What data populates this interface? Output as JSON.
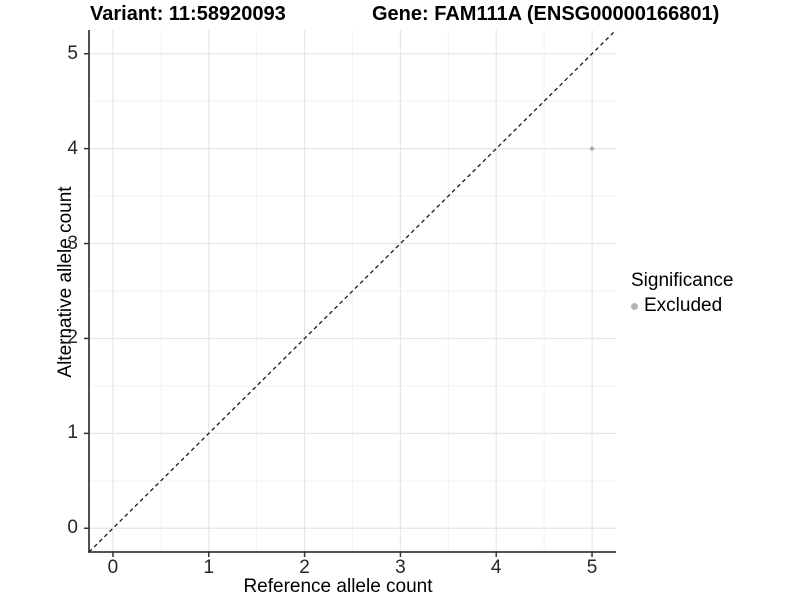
{
  "chart_data": {
    "type": "scatter",
    "titles": {
      "left": "Variant: 11:58920093",
      "right": "Gene: FAM111A (ENSG00000166801)"
    },
    "xlabel": "Reference allele count",
    "ylabel": "Alternative allele count",
    "xlim": [
      -0.25,
      5.25
    ],
    "ylim": [
      -0.25,
      5.25
    ],
    "x_ticks": [
      0,
      1,
      2,
      3,
      4,
      5
    ],
    "y_ticks": [
      0,
      1,
      2,
      3,
      4,
      5
    ],
    "x_minor_ticks": [
      0.5,
      1.5,
      2.5,
      3.5,
      4.5
    ],
    "y_minor_ticks": [
      0.5,
      1.5,
      2.5,
      3.5,
      4.5
    ],
    "grid": "major+minor",
    "points": [
      {
        "x": 5,
        "y": 4,
        "series": "Excluded"
      }
    ],
    "reference_line": {
      "kind": "identity",
      "slope": 1,
      "intercept": 0,
      "style": "dashed"
    },
    "legend": {
      "title": "Significance",
      "position": "right",
      "items": [
        {
          "label": "Excluded",
          "color": "#b3b3b3",
          "marker": "circle"
        }
      ]
    },
    "colors": {
      "background": "#ffffff",
      "point_excluded": "#b3b3b3",
      "major_grid": "#e6e6e6",
      "minor_grid": "#f2f2f2",
      "axis_line": "#3c3c3c",
      "tick_mark": "#333333",
      "tick_label": "#262626",
      "reference_line": "#1a1a1a"
    }
  }
}
